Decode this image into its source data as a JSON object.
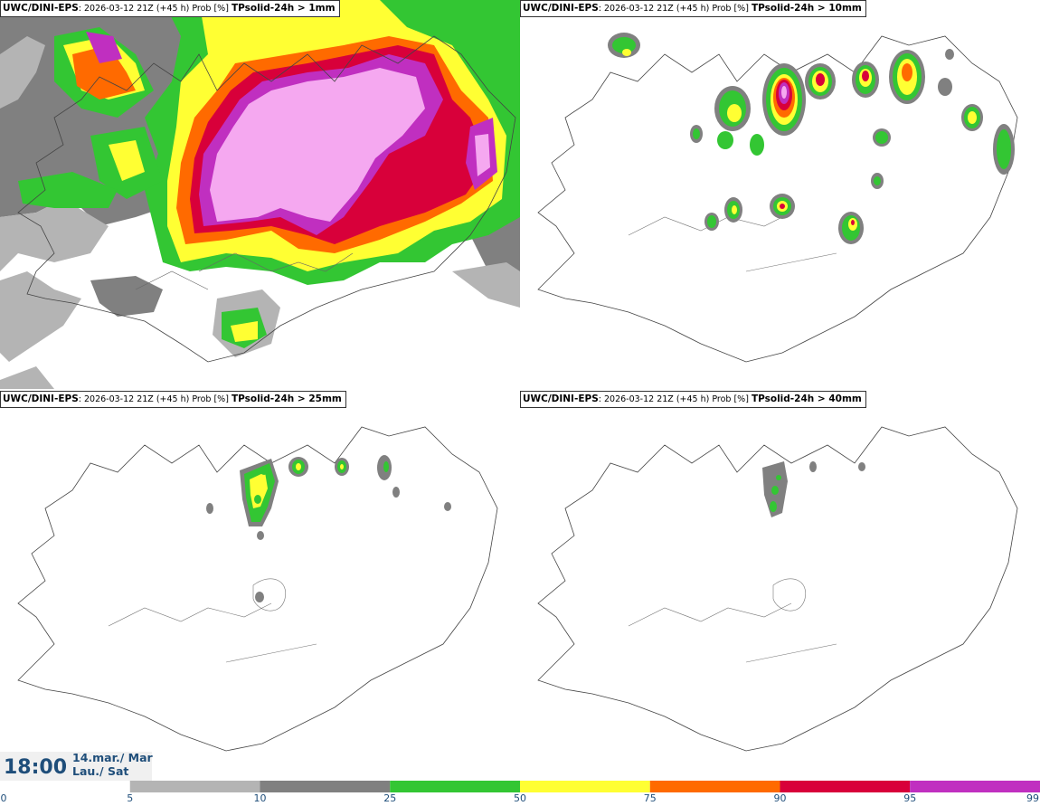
{
  "panels": [
    {
      "model": "UWC/DINI-EPS",
      "run": ": 2026-03-12 21Z (+45 h) Prob [%] ",
      "param": "TPsolid-24h > 1mm"
    },
    {
      "model": "UWC/DINI-EPS",
      "run": ": 2026-03-12 21Z (+45 h) Prob [%] ",
      "param": "TPsolid-24h > 10mm"
    },
    {
      "model": "UWC/DINI-EPS",
      "run": ": 2026-03-12 21Z (+45 h) Prob [%] ",
      "param": "TPsolid-24h > 25mm"
    },
    {
      "model": "UWC/DINI-EPS",
      "run": ": 2026-03-12 21Z (+45 h) Prob [%] ",
      "param": "TPsolid-24h > 40mm"
    }
  ],
  "valid_time": {
    "time": "18:00",
    "date_line1": "14.mar./ Mar",
    "date_line2": "Lau./ Sat"
  },
  "legend": {
    "ticks": [
      "0",
      "5",
      "10",
      "25",
      "50",
      "75",
      "90",
      "95",
      "99"
    ],
    "colors": [
      "#ffffff",
      "#b4b4b4",
      "#808080",
      "#33c633",
      "#ffff33",
      "#ff6a00",
      "#d8003a",
      "#c02fc0",
      "#f5a8f0"
    ]
  },
  "colors": {
    "p5": "#b4b4b4",
    "p10": "#808080",
    "p25": "#33c633",
    "p50": "#ffff33",
    "p75": "#ff6a00",
    "p90": "#d8003a",
    "p95": "#c02fc0",
    "p99": "#f5a8f0",
    "text_blue": "#1f4e7a"
  }
}
